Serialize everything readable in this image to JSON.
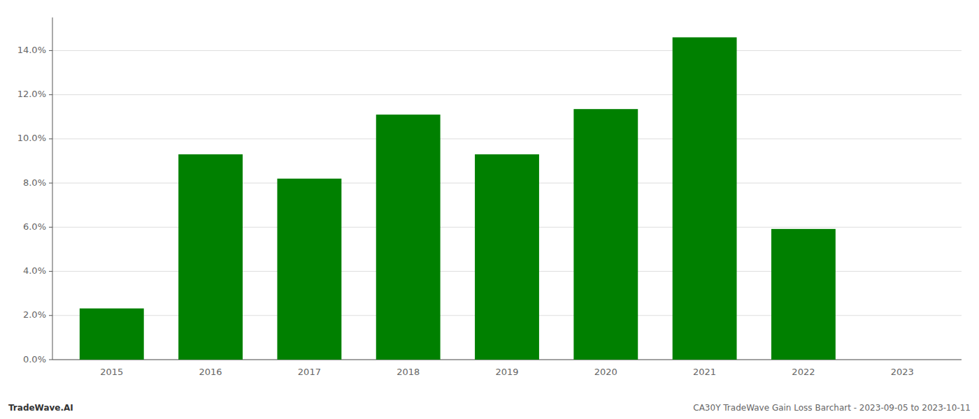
{
  "chart_data": {
    "type": "bar",
    "categories": [
      "2015",
      "2016",
      "2017",
      "2018",
      "2019",
      "2020",
      "2021",
      "2022",
      "2023"
    ],
    "values": [
      0.0232,
      0.093,
      0.082,
      0.111,
      0.093,
      0.1135,
      0.146,
      0.0592,
      0.0
    ],
    "color": "#008000",
    "ylim": [
      0.0,
      0.155
    ],
    "yticks": [
      {
        "value": 0.0,
        "label": "0.0%"
      },
      {
        "value": 0.02,
        "label": "2.0%"
      },
      {
        "value": 0.04,
        "label": "4.0%"
      },
      {
        "value": 0.06,
        "label": "6.0%"
      },
      {
        "value": 0.08,
        "label": "8.0%"
      },
      {
        "value": 0.1,
        "label": "10.0%"
      },
      {
        "value": 0.12,
        "label": "12.0%"
      },
      {
        "value": 0.14,
        "label": "14.0%"
      }
    ],
    "grid": true,
    "annotations": [
      "TradeWave.AI",
      "CA30Y TradeWave Gain Loss Barchart - 2023-09-05 to 2023-10-11"
    ]
  }
}
